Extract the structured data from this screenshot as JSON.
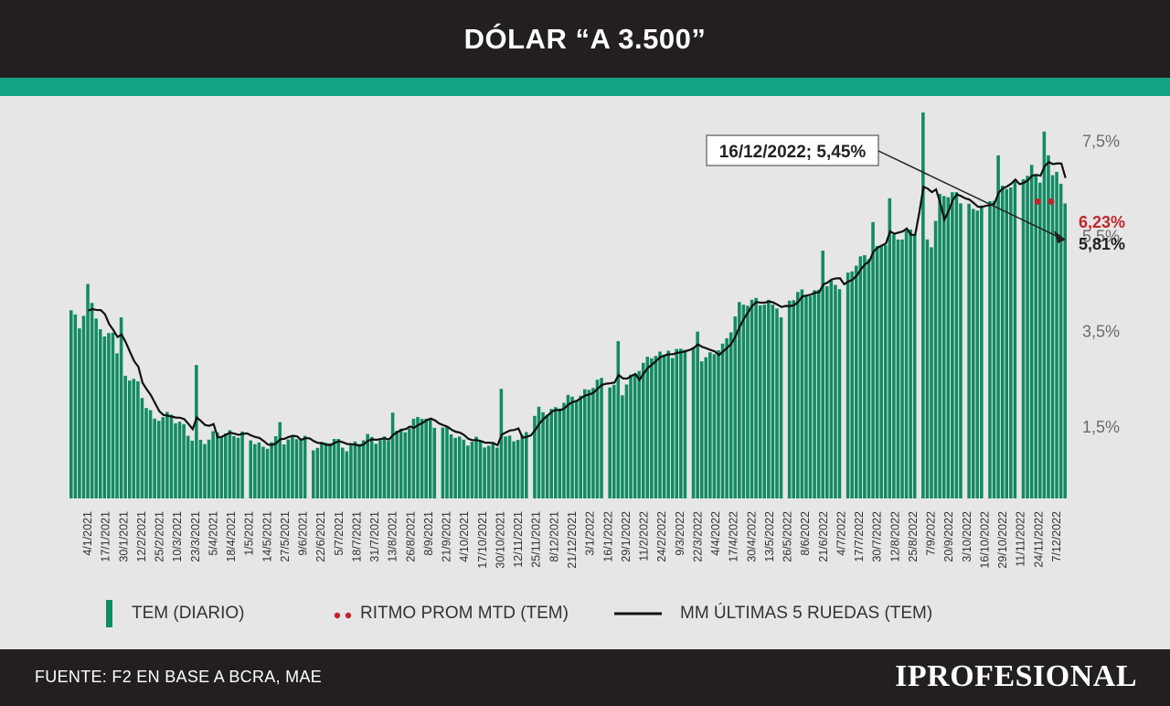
{
  "header": {
    "title": "DÓLAR “A 3.500”"
  },
  "colors": {
    "bars": "#128a64",
    "line": "#111111",
    "mtd": "#c0262d",
    "accent": "#14a383",
    "dark": "#231f20"
  },
  "chart_data": {
    "type": "bar",
    "ylim": [
      0,
      8.1
    ],
    "yticks": [
      1.5,
      3.5,
      5.5,
      7.5
    ],
    "ytick_labels": [
      "1,5%",
      "3,5%",
      "5,5%",
      "7,5%"
    ],
    "x_tick_labels": [
      "4/1/2021",
      "17/1/2021",
      "30/1/2021",
      "12/2/2021",
      "25/2/2021",
      "10/3/2021",
      "23/3/2021",
      "5/4/2021",
      "18/4/2021",
      "1/5/2021",
      "14/5/2021",
      "27/5/2021",
      "9/6/2021",
      "22/6/2021",
      "5/7/2021",
      "18/7/2021",
      "31/7/2021",
      "13/8/2021",
      "26/8/2021",
      "8/9/2021",
      "21/9/2021",
      "4/10/2021",
      "17/10/2021",
      "30/10/2021",
      "12/11/2021",
      "25/11/2021",
      "8/12/2021",
      "21/12/2021",
      "3/1/2022",
      "16/1/2022",
      "29/1/2022",
      "11/2/2022",
      "24/2/2022",
      "9/3/2022",
      "22/3/2022",
      "4/4/2022",
      "17/4/2022",
      "30/4/2022",
      "13/5/2022",
      "26/5/2022",
      "8/6/2022",
      "21/6/2022",
      "4/7/2022",
      "17/7/2022",
      "30/7/2022",
      "12/8/2022",
      "25/8/2022",
      "7/9/2022",
      "20/9/2022",
      "3/10/2022",
      "16/10/2022",
      "29/10/2022",
      "11/11/2022",
      "24/11/2022",
      "7/12/2022"
    ],
    "series": [
      {
        "name": "TEM (DIARIO)",
        "type": "bar",
        "knots": [
          [
            0,
            3.9
          ],
          [
            2,
            3.6
          ],
          [
            4,
            4.3
          ],
          [
            6,
            3.8
          ],
          [
            8,
            3.3
          ],
          [
            10,
            3.6
          ],
          [
            12,
            2.6
          ],
          [
            16,
            2.4
          ],
          [
            18,
            2.0
          ],
          [
            20,
            1.6
          ],
          [
            24,
            1.8
          ],
          [
            26,
            1.6
          ],
          [
            28,
            1.3
          ],
          [
            30,
            1.2
          ],
          [
            34,
            1.3
          ],
          [
            38,
            1.4
          ],
          [
            42,
            1.3
          ],
          [
            46,
            1.1
          ],
          [
            50,
            1.2
          ],
          [
            54,
            1.3
          ],
          [
            58,
            1.1
          ],
          [
            62,
            1.2
          ],
          [
            66,
            1.1
          ],
          [
            70,
            1.2
          ],
          [
            72,
            1.3
          ],
          [
            76,
            1.2
          ],
          [
            80,
            1.5
          ],
          [
            84,
            1.7
          ],
          [
            88,
            1.5
          ],
          [
            92,
            1.3
          ],
          [
            96,
            1.2
          ],
          [
            100,
            1.1
          ],
          [
            104,
            1.2
          ],
          [
            108,
            1.3
          ],
          [
            112,
            1.8
          ],
          [
            116,
            1.9
          ],
          [
            120,
            2.1
          ],
          [
            124,
            2.3
          ],
          [
            128,
            2.5
          ],
          [
            132,
            2.2
          ],
          [
            136,
            2.8
          ],
          [
            140,
            3.0
          ],
          [
            144,
            3.0
          ],
          [
            148,
            3.2
          ],
          [
            152,
            2.9
          ],
          [
            156,
            3.2
          ],
          [
            160,
            4.0
          ],
          [
            164,
            4.2
          ],
          [
            168,
            4.0
          ],
          [
            172,
            4.2
          ],
          [
            176,
            4.3
          ],
          [
            180,
            4.4
          ],
          [
            184,
            4.5
          ],
          [
            188,
            4.9
          ],
          [
            192,
            5.2
          ],
          [
            196,
            5.4
          ],
          [
            200,
            5.6
          ],
          [
            204,
            5.5
          ],
          [
            206,
            5.4
          ],
          [
            208,
            6.3
          ],
          [
            212,
            6.4
          ],
          [
            216,
            6.0
          ],
          [
            220,
            6.3
          ],
          [
            224,
            6.5
          ],
          [
            228,
            6.8
          ],
          [
            232,
            6.7
          ],
          [
            236,
            6.9
          ],
          [
            238,
            6.1
          ]
        ],
        "spikes": {
          "4": 4.5,
          "12": 3.8,
          "30": 2.8,
          "50": 1.6,
          "77": 1.8,
          "93": 1.3,
          "103": 2.3,
          "131": 3.3,
          "143": 3.1,
          "150": 3.5,
          "170": 3.8,
          "180": 5.2,
          "192": 5.8,
          "196": 6.3,
          "203": 7.8,
          "204": 8.1,
          "222": 7.2,
          "230": 7.0,
          "233": 7.7,
          "234": 7.2
        },
        "dips": [
          42,
          57,
          88,
          110,
          128,
          148,
          171,
          185,
          203,
          214,
          219,
          227
        ]
      },
      {
        "name": "MM ÚLTIMAS 5 RUEDAS (TEM)",
        "type": "line"
      },
      {
        "name": "RITMO PROM MTD (TEM)",
        "type": "scatter",
        "values": [
          6.23,
          6.23
        ]
      }
    ],
    "n_bars": 239,
    "annotations": [
      {
        "label": "16/12/2022; 5,45%",
        "value": 5.45
      },
      {
        "label": "6,23%",
        "value": 6.23
      },
      {
        "label": "5,81%",
        "value": 5.81
      }
    ]
  },
  "legend": {
    "bars_label": "TEM (DIARIO)",
    "mtd_label": "RITMO PROM MTD (TEM)",
    "line_label": "MM ÚLTIMAS 5 RUEDAS (TEM)"
  },
  "footer": {
    "source": "FUENTE: F2 EN BASE A BCRA, MAE",
    "brand": "IPROFESIONAL"
  }
}
